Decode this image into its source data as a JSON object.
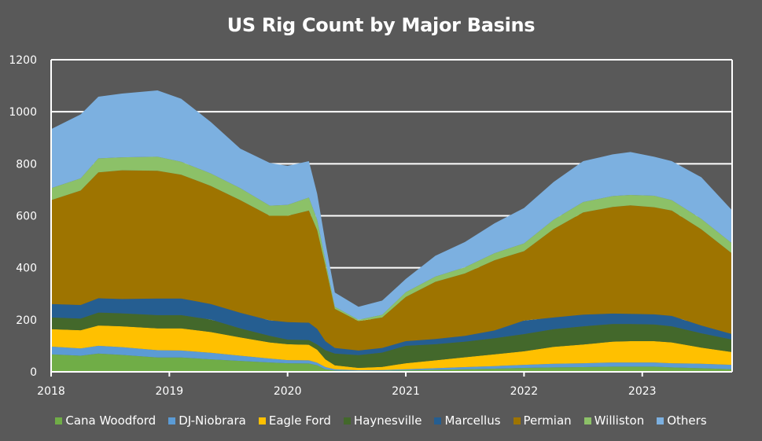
{
  "chart_data": {
    "type": "area",
    "stacked": true,
    "title": "US Rig Count by Major Basins",
    "xlabel": "",
    "ylabel": "",
    "xlim": [
      2018.0,
      2023.76
    ],
    "ylim": [
      0,
      1200
    ],
    "yticks": [
      0,
      200,
      400,
      600,
      800,
      1000,
      1200
    ],
    "xticks": [
      2018,
      2019,
      2020,
      2021,
      2022,
      2023
    ],
    "xtick_labels": [
      "2018",
      "2019",
      "2020",
      "2021",
      "2022",
      "2023"
    ],
    "grid": "horizontal",
    "legend_position": "bottom",
    "x": [
      2018.0,
      2018.25,
      2018.4,
      2018.6,
      2018.9,
      2019.1,
      2019.35,
      2019.6,
      2019.85,
      2020.0,
      2020.18,
      2020.25,
      2020.32,
      2020.4,
      2020.6,
      2020.8,
      2021.0,
      2021.25,
      2021.5,
      2021.75,
      2022.0,
      2022.25,
      2022.5,
      2022.75,
      2022.9,
      2023.1,
      2023.25,
      2023.5,
      2023.76
    ],
    "series": [
      {
        "name": "Cana Woodford",
        "color": "#70AD47",
        "values": [
          67,
          62,
          70,
          65,
          55,
          55,
          48,
          42,
          36,
          33,
          32,
          25,
          10,
          5,
          3,
          4,
          6,
          8,
          10,
          12,
          15,
          17,
          18,
          20,
          20,
          20,
          17,
          14,
          10
        ]
      },
      {
        "name": "DJ-Niobrara",
        "color": "#5B9BD5",
        "values": [
          30,
          28,
          30,
          30,
          28,
          27,
          25,
          20,
          15,
          12,
          12,
          10,
          8,
          5,
          3,
          3,
          4,
          6,
          8,
          10,
          12,
          14,
          15,
          16,
          16,
          16,
          16,
          17,
          17
        ]
      },
      {
        "name": "Eagle Ford",
        "color": "#FFC000",
        "values": [
          67,
          70,
          78,
          80,
          84,
          85,
          80,
          70,
          62,
          61,
          60,
          50,
          30,
          15,
          9,
          12,
          23,
          30,
          38,
          45,
          52,
          65,
          72,
          80,
          82,
          82,
          80,
          62,
          49
        ]
      },
      {
        "name": "Haynesville",
        "color": "#43682B",
        "values": [
          45,
          45,
          50,
          50,
          51,
          51,
          48,
          35,
          25,
          18,
          18,
          20,
          35,
          45,
          49,
          55,
          67,
          62,
          60,
          62,
          66,
          68,
          70,
          68,
          66,
          64,
          62,
          55,
          48
        ]
      },
      {
        "name": "Marcellus",
        "color": "#255E91",
        "values": [
          52,
          52,
          55,
          55,
          64,
          64,
          60,
          60,
          60,
          67,
          67,
          60,
          35,
          22,
          18,
          18,
          18,
          20,
          22,
          30,
          52,
          45,
          45,
          40,
          39,
          39,
          40,
          30,
          21
        ]
      },
      {
        "name": "Permian",
        "color": "#9E7400",
        "values": [
          399,
          440,
          484,
          495,
          491,
          476,
          454,
          433,
          402,
          409,
          431,
          380,
          290,
          150,
          113,
          117,
          170,
          220,
          240,
          270,
          267,
          340,
          393,
          410,
          417,
          412,
          405,
          370,
          310
        ]
      },
      {
        "name": "Williston",
        "color": "#8CC168",
        "values": [
          46,
          47,
          54,
          50,
          54,
          50,
          48,
          46,
          39,
          42,
          50,
          40,
          20,
          8,
          5,
          10,
          18,
          20,
          24,
          27,
          30,
          36,
          40,
          42,
          40,
          44,
          40,
          40,
          39
        ]
      },
      {
        "name": "Others",
        "color": "#7CB0E0",
        "values": [
          227,
          246,
          237,
          245,
          255,
          242,
          198,
          152,
          164,
          150,
          140,
          100,
          70,
          55,
          50,
          55,
          51,
          80,
          97,
          115,
          136,
          145,
          157,
          160,
          165,
          150,
          150,
          160,
          127
        ]
      }
    ]
  }
}
